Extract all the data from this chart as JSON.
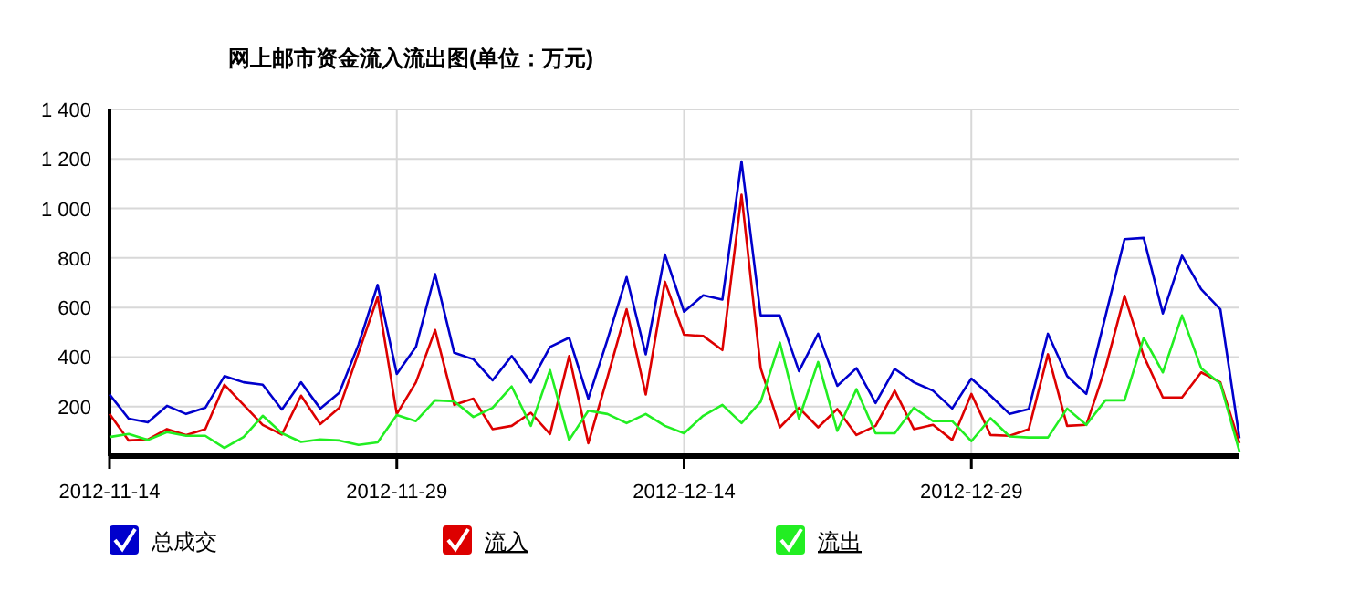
{
  "chart_data": {
    "type": "line",
    "title": "网上邮市资金流入流出图(单位：万元)",
    "x": [
      "2012-11-14",
      "2012-11-15",
      "2012-11-16",
      "2012-11-17",
      "2012-11-18",
      "2012-11-19",
      "2012-11-20",
      "2012-11-21",
      "2012-11-22",
      "2012-11-23",
      "2012-11-24",
      "2012-11-25",
      "2012-11-26",
      "2012-11-27",
      "2012-11-28",
      "2012-11-29",
      "2012-11-30",
      "2012-12-01",
      "2012-12-02",
      "2012-12-03",
      "2012-12-04",
      "2012-12-05",
      "2012-12-06",
      "2012-12-07",
      "2012-12-08",
      "2012-12-09",
      "2012-12-10",
      "2012-12-11",
      "2012-12-12",
      "2012-12-13",
      "2012-12-14",
      "2012-12-15",
      "2012-12-16",
      "2012-12-17",
      "2012-12-18",
      "2012-12-19",
      "2012-12-20",
      "2012-12-21",
      "2012-12-22",
      "2012-12-23",
      "2012-12-24",
      "2012-12-25",
      "2012-12-26",
      "2012-12-27",
      "2012-12-28",
      "2012-12-29",
      "2012-12-30",
      "2012-12-31",
      "2013-01-01",
      "2013-01-02",
      "2013-01-03",
      "2013-01-04",
      "2013-01-05",
      "2013-01-06",
      "2013-01-07",
      "2013-01-08",
      "2013-01-09",
      "2013-01-10",
      "2013-01-11",
      "2013-01-12"
    ],
    "series": [
      {
        "name": "总成交",
        "color": "#0000cc",
        "values": [
          249,
          151,
          136,
          203,
          170,
          195,
          323,
          298,
          288,
          188,
          298,
          192,
          256,
          450,
          691,
          332,
          441,
          735,
          417,
          391,
          306,
          404,
          298,
          441,
          478,
          232,
          470,
          723,
          411,
          814,
          583,
          649,
          632,
          1190,
          568,
          568,
          343,
          494,
          284,
          355,
          214,
          352,
          298,
          264,
          192,
          313,
          244,
          170,
          190,
          494,
          323,
          251,
          564,
          876,
          881,
          576,
          809,
          674,
          593,
          72
        ]
      },
      {
        "name": "流入",
        "color": "#dd0000",
        "values": [
          170,
          63,
          67,
          109,
          85,
          109,
          288,
          207,
          126,
          87,
          244,
          129,
          195,
          417,
          642,
          170,
          298,
          509,
          207,
          232,
          109,
          122,
          175,
          89,
          404,
          52,
          318,
          593,
          249,
          704,
          490,
          485,
          428,
          1055,
          355,
          116,
          195,
          116,
          190,
          85,
          122,
          264,
          109,
          126,
          65,
          251,
          85,
          82,
          109,
          411,
          122,
          126,
          355,
          647,
          404,
          237,
          237,
          338,
          298,
          52
        ]
      },
      {
        "name": "流出",
        "color": "#22ee22",
        "values": [
          77,
          89,
          65,
          97,
          82,
          82,
          33,
          77,
          163,
          92,
          57,
          67,
          63,
          45,
          55,
          166,
          141,
          225,
          221,
          158,
          195,
          281,
          122,
          347,
          65,
          183,
          170,
          133,
          170,
          122,
          92,
          163,
          207,
          133,
          220,
          458,
          151,
          380,
          102,
          270,
          92,
          92,
          195,
          141,
          141,
          60,
          153,
          79,
          75,
          75,
          192,
          126,
          225,
          225,
          478,
          338,
          568,
          355,
          293,
          18
        ]
      }
    ],
    "xlim": [
      "2012-11-14",
      "2013-01-12"
    ],
    "xticks": [
      "2012-11-14",
      "2012-11-29",
      "2012-12-14",
      "2012-12-29"
    ],
    "ylim": [
      0,
      1400
    ],
    "yticks": [
      {
        "value": 200,
        "label": "200"
      },
      {
        "value": 400,
        "label": "400"
      },
      {
        "value": 600,
        "label": "600"
      },
      {
        "value": 800,
        "label": "800"
      },
      {
        "value": 1000,
        "label": "1 000"
      },
      {
        "value": 1200,
        "label": "1 200"
      },
      {
        "value": 1400,
        "label": "1 400"
      }
    ],
    "grid": true,
    "legend": "bottom",
    "marker": "none",
    "line_style": "solid"
  }
}
